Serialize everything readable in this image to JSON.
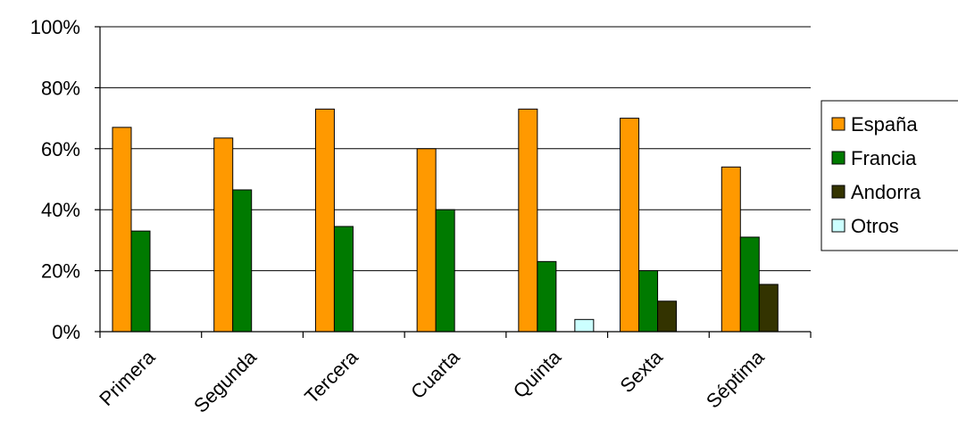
{
  "chart_data": {
    "type": "bar",
    "title": "",
    "xlabel": "",
    "ylabel": "",
    "ylim": [
      0,
      100
    ],
    "y_ticks": [
      0,
      20,
      40,
      60,
      80,
      100
    ],
    "y_tick_labels": [
      "0%",
      "20%",
      "40%",
      "60%",
      "80%",
      "100%"
    ],
    "grid": true,
    "legend_position": "right",
    "categories": [
      "Primera",
      "Segunda",
      "Tercera",
      "Cuarta",
      "Quinta",
      "Sexta",
      "Séptima"
    ],
    "series": [
      {
        "name": "España",
        "color": "#FF9900",
        "values": [
          67,
          63.5,
          73,
          60,
          73,
          70,
          54
        ]
      },
      {
        "name": "Francia",
        "color": "#007A00",
        "values": [
          33,
          46.5,
          34.5,
          40,
          23,
          20,
          31
        ]
      },
      {
        "name": "Andorra",
        "color": "#333300",
        "values": [
          0,
          0,
          0,
          0,
          0,
          10,
          15.5
        ]
      },
      {
        "name": "Otros",
        "color": "#CCFFFF",
        "values": [
          0,
          0,
          0,
          0,
          4,
          0,
          0
        ]
      }
    ]
  }
}
